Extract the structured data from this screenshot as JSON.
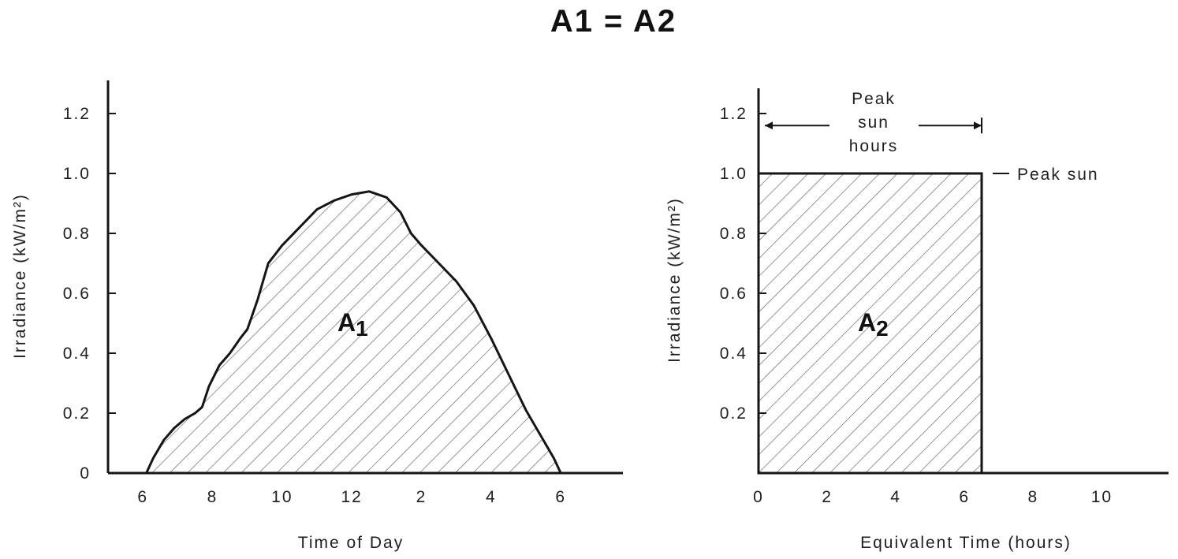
{
  "title": "A1 = A2",
  "chart_data": [
    {
      "type": "area",
      "xlabel": "Time of Day",
      "ylabel": "Irradiance (kW/m²)",
      "x_tick_labels": [
        "6",
        "8",
        "10",
        "12",
        "2",
        "4",
        "6"
      ],
      "x_tick_hours": [
        6,
        8,
        10,
        12,
        14,
        16,
        18
      ],
      "xlim": [
        5,
        20
      ],
      "y_tick_labels": [
        "0",
        "0.2",
        "0.4",
        "0.6",
        "0.8",
        "1.0",
        "1.2"
      ],
      "y_ticks": [
        0,
        0.2,
        0.4,
        0.6,
        0.8,
        1.0,
        1.2
      ],
      "ylim": [
        0,
        1.3
      ],
      "area_label": "A",
      "area_label_sub": "1",
      "series": [
        {
          "x": [
            6.1,
            6.3,
            6.6,
            6.9,
            7.2,
            7.5,
            7.7,
            7.9,
            8.2,
            8.5,
            8.8,
            9.0,
            9.3,
            9.6,
            10.0,
            10.5,
            11.0,
            11.5,
            12.0,
            12.5,
            13.0,
            13.4,
            13.7,
            14.0,
            14.5,
            15.0,
            15.5,
            16.0,
            16.5,
            17.0,
            17.5,
            17.8,
            18.0
          ],
          "y": [
            0.0,
            0.05,
            0.11,
            0.15,
            0.18,
            0.2,
            0.22,
            0.29,
            0.36,
            0.4,
            0.45,
            0.48,
            0.58,
            0.7,
            0.76,
            0.82,
            0.88,
            0.91,
            0.93,
            0.94,
            0.92,
            0.87,
            0.8,
            0.76,
            0.7,
            0.64,
            0.56,
            0.45,
            0.33,
            0.21,
            0.11,
            0.05,
            0.0
          ]
        }
      ]
    },
    {
      "type": "area",
      "xlabel": "Equivalent Time (hours)",
      "ylabel": "Irradiance (kW/m²)",
      "x_tick_labels": [
        "0",
        "2",
        "4",
        "6",
        "8",
        "10"
      ],
      "x_ticks": [
        0,
        2,
        4,
        6,
        8,
        10
      ],
      "xlim": [
        0,
        11.5
      ],
      "y_tick_labels": [
        "0.2",
        "0.4",
        "0.6",
        "0.8",
        "1.0",
        "1.2"
      ],
      "y_ticks": [
        0.2,
        0.4,
        0.6,
        0.8,
        1.0,
        1.2
      ],
      "ylim": [
        0,
        1.3
      ],
      "area_label": "A",
      "area_label_sub": "2",
      "peak_sun_hours_label": [
        "Peak",
        "sun",
        "hours"
      ],
      "peak_sun_label": "Peak sun",
      "series": [
        {
          "x": [
            0,
            0,
            6.5,
            6.5
          ],
          "y": [
            0,
            1.0,
            1.0,
            0
          ]
        }
      ]
    }
  ]
}
